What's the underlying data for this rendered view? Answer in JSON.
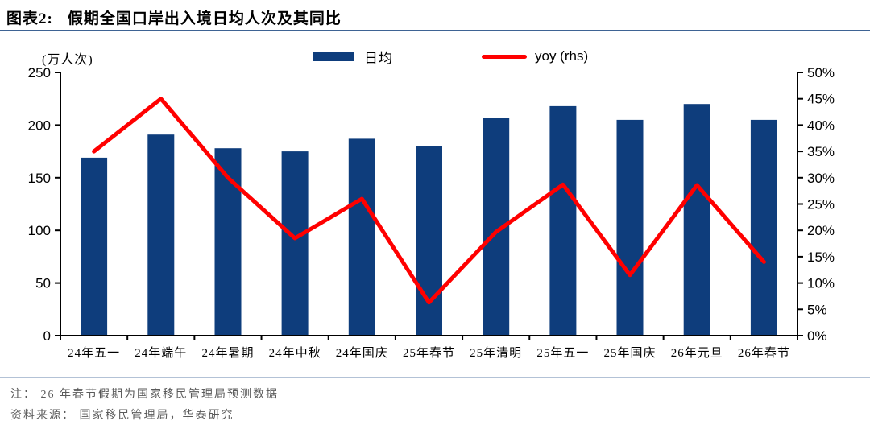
{
  "header": {
    "tag": "图表2:",
    "title": "假期全国口岸出入境日均人次及其同比"
  },
  "legend": {
    "bars_label": "日均",
    "line_label": "yoy (rhs)"
  },
  "chart_data": {
    "type": "bar",
    "title": "假期全国口岸出入境日均人次及其同比",
    "categories": [
      "24年五一",
      "24年端午",
      "24年暑期",
      "24年中秋",
      "24年国庆",
      "25年春节",
      "25年清明",
      "25年五一",
      "25年国庆",
      "26年元旦",
      "26年春节"
    ],
    "series": [
      {
        "name": "日均",
        "type": "bar",
        "axis": "left",
        "color": "#0e3d7c",
        "values": [
          169,
          191,
          178,
          175,
          187,
          180,
          207,
          218,
          205,
          220,
          205
        ]
      },
      {
        "name": "yoy (rhs)",
        "type": "line",
        "axis": "right",
        "color": "#ff0000",
        "values": [
          35,
          45,
          30,
          18.5,
          26,
          6.3,
          19.7,
          28.7,
          11.5,
          28.6,
          14
        ]
      }
    ],
    "left_axis": {
      "label": "(万人次)",
      "min": 0,
      "max": 250,
      "step": 50,
      "suffix": ""
    },
    "right_axis": {
      "min": 0,
      "max": 50,
      "step": 5,
      "suffix": "%"
    },
    "grid": false,
    "legend_position": "top"
  },
  "colors": {
    "bar": "#0e3d7c",
    "line": "#ff0000",
    "axis": "#000000",
    "title_rule": "#3e6394",
    "notes_rule": "#b3c2d6",
    "note_text": "#5a5a5a"
  },
  "notes": {
    "note": "注： 26 年春节假期为国家移民管理局预测数据",
    "source": "资料来源： 国家移民管理局，华泰研究"
  }
}
